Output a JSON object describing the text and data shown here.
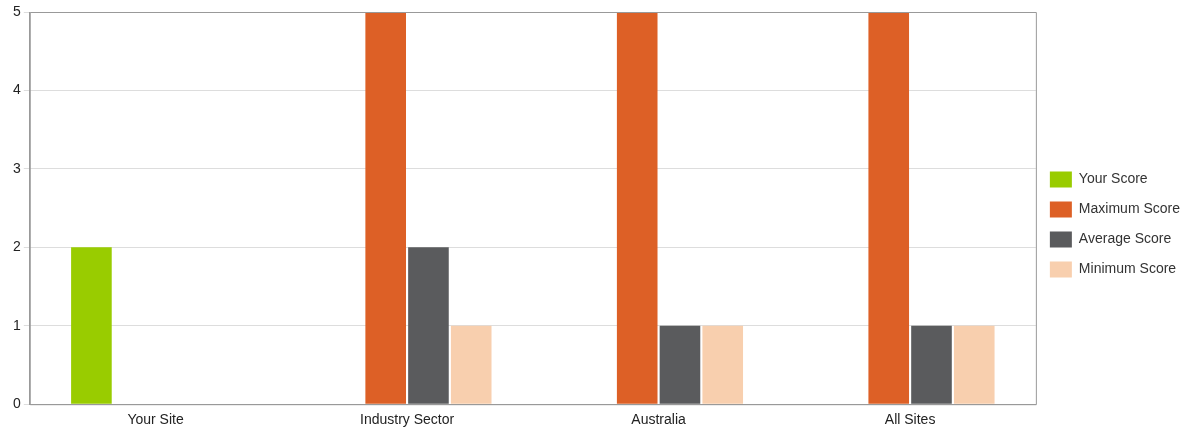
{
  "chart_data": {
    "type": "bar",
    "categories": [
      "Your Site",
      "Industry Sector",
      "Australia",
      "All Sites"
    ],
    "series": [
      {
        "name": "Your Score",
        "color": "#99cc00",
        "values": [
          2,
          null,
          null,
          null
        ]
      },
      {
        "name": "Maximum Score",
        "color": "#dd6026",
        "values": [
          null,
          5,
          5,
          5
        ]
      },
      {
        "name": "Average Score",
        "color": "#5a5b5d",
        "values": [
          null,
          2,
          1,
          1
        ]
      },
      {
        "name": "Minimum Score",
        "color": "#f8cfae",
        "values": [
          null,
          1,
          1,
          1
        ]
      }
    ],
    "ylim": [
      0,
      5
    ],
    "yticks": [
      0,
      1,
      2,
      3,
      4,
      5
    ],
    "grid": "y",
    "legend": "right"
  }
}
